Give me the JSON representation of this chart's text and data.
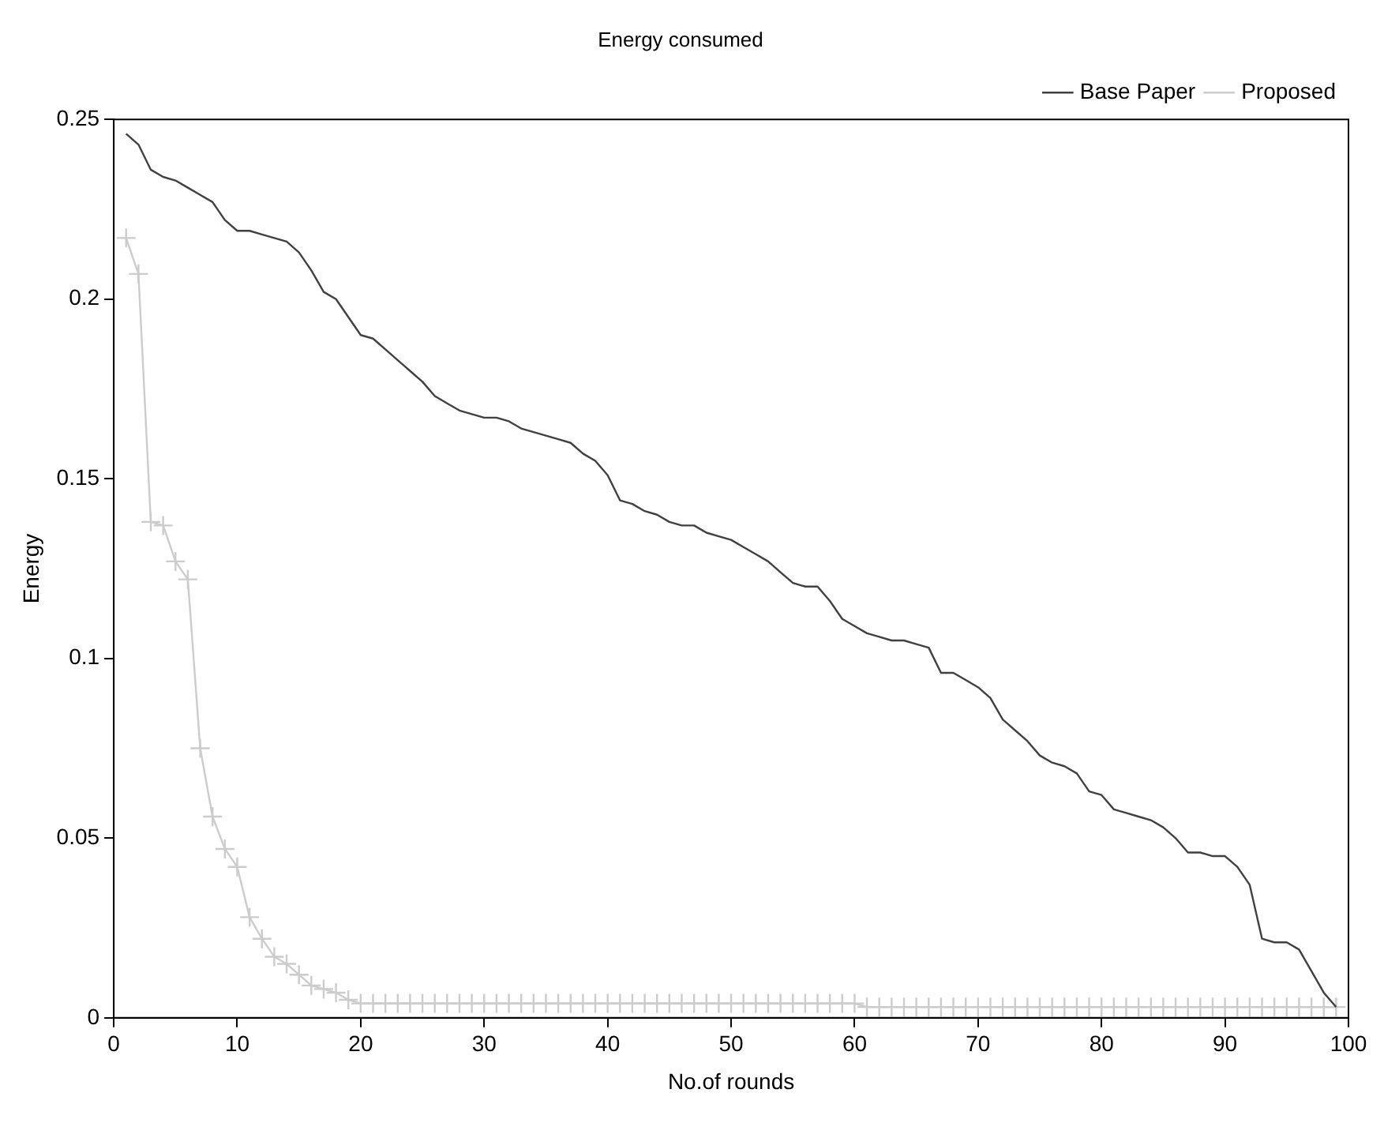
{
  "chart_data": {
    "type": "line",
    "title": "Energy consumed",
    "xlabel": "No.of rounds",
    "ylabel": "Energy",
    "x": [
      1,
      2,
      3,
      4,
      5,
      6,
      7,
      8,
      9,
      10,
      11,
      12,
      13,
      14,
      15,
      16,
      17,
      18,
      19,
      20,
      21,
      22,
      23,
      24,
      25,
      26,
      27,
      28,
      29,
      30,
      31,
      32,
      33,
      34,
      35,
      36,
      37,
      38,
      39,
      40,
      41,
      42,
      43,
      44,
      45,
      46,
      47,
      48,
      49,
      50,
      51,
      52,
      53,
      54,
      55,
      56,
      57,
      58,
      59,
      60,
      61,
      62,
      63,
      64,
      65,
      66,
      67,
      68,
      69,
      70,
      71,
      72,
      73,
      74,
      75,
      76,
      77,
      78,
      79,
      80,
      81,
      82,
      83,
      84,
      85,
      86,
      87,
      88,
      89,
      90,
      91,
      92,
      93,
      94,
      95,
      96,
      97,
      98,
      99
    ],
    "series": [
      {
        "name": "Base Paper",
        "color": "#404040",
        "marker": "none",
        "values": [
          0.246,
          0.243,
          0.236,
          0.234,
          0.233,
          0.231,
          0.229,
          0.227,
          0.222,
          0.219,
          0.219,
          0.218,
          0.217,
          0.216,
          0.213,
          0.208,
          0.202,
          0.2,
          0.195,
          0.19,
          0.189,
          0.186,
          0.183,
          0.18,
          0.177,
          0.173,
          0.171,
          0.169,
          0.168,
          0.167,
          0.167,
          0.166,
          0.164,
          0.163,
          0.162,
          0.161,
          0.16,
          0.157,
          0.155,
          0.151,
          0.144,
          0.143,
          0.141,
          0.14,
          0.138,
          0.137,
          0.137,
          0.135,
          0.134,
          0.133,
          0.131,
          0.129,
          0.127,
          0.124,
          0.121,
          0.12,
          0.12,
          0.116,
          0.111,
          0.109,
          0.107,
          0.106,
          0.105,
          0.105,
          0.104,
          0.103,
          0.096,
          0.096,
          0.094,
          0.092,
          0.089,
          0.083,
          0.08,
          0.077,
          0.073,
          0.071,
          0.07,
          0.068,
          0.063,
          0.062,
          0.058,
          0.057,
          0.056,
          0.055,
          0.053,
          0.05,
          0.046,
          0.046,
          0.045,
          0.045,
          0.042,
          0.037,
          0.022,
          0.021,
          0.021,
          0.019,
          0.013,
          0.007,
          0.003
        ]
      },
      {
        "name": "Proposed",
        "color": "#cccccc",
        "marker": "cross",
        "values": [
          0.217,
          0.207,
          0.138,
          0.137,
          0.127,
          0.122,
          0.075,
          0.056,
          0.047,
          0.042,
          0.028,
          0.022,
          0.017,
          0.015,
          0.012,
          0.009,
          0.008,
          0.007,
          0.005,
          0.004,
          0.004,
          0.004,
          0.004,
          0.004,
          0.004,
          0.004,
          0.004,
          0.004,
          0.004,
          0.004,
          0.004,
          0.004,
          0.004,
          0.004,
          0.004,
          0.004,
          0.004,
          0.004,
          0.004,
          0.004,
          0.004,
          0.004,
          0.004,
          0.004,
          0.004,
          0.004,
          0.004,
          0.004,
          0.004,
          0.004,
          0.004,
          0.004,
          0.004,
          0.004,
          0.004,
          0.004,
          0.004,
          0.004,
          0.004,
          0.004,
          0.003,
          0.003,
          0.003,
          0.003,
          0.003,
          0.003,
          0.003,
          0.003,
          0.003,
          0.003,
          0.003,
          0.003,
          0.003,
          0.003,
          0.003,
          0.003,
          0.003,
          0.003,
          0.003,
          0.003,
          0.003,
          0.003,
          0.003,
          0.003,
          0.003,
          0.003,
          0.003,
          0.003,
          0.003,
          0.003,
          0.003,
          0.003,
          0.003,
          0.003,
          0.003,
          0.003,
          0.003,
          0.003,
          0.003
        ]
      }
    ],
    "xlim": [
      0,
      100
    ],
    "xticks": [
      0,
      10,
      20,
      30,
      40,
      50,
      60,
      70,
      80,
      90,
      100
    ],
    "ylim": [
      0,
      0.25
    ],
    "yticks": [
      0,
      0.05,
      0.1,
      0.15,
      0.2,
      0.25
    ],
    "grid": false,
    "legend": "top right",
    "line_style": "solid"
  }
}
